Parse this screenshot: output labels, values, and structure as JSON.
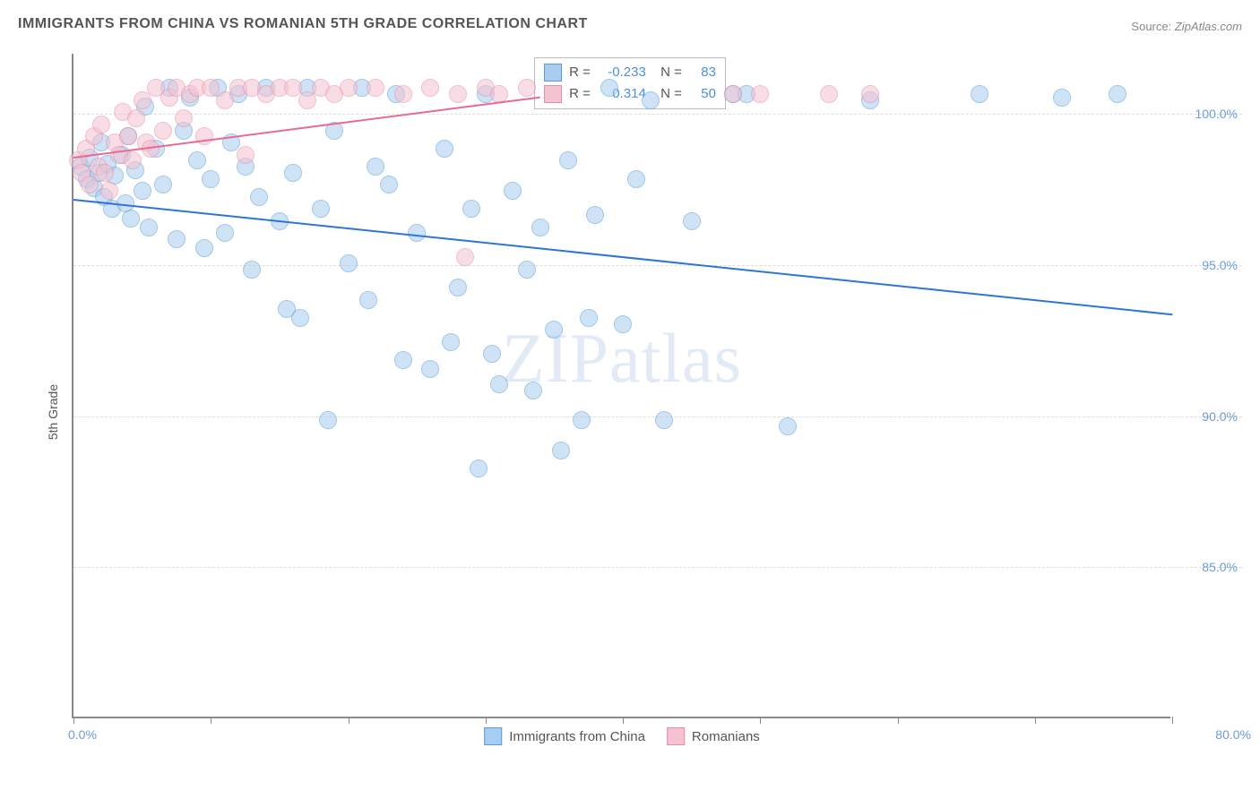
{
  "title": "IMMIGRANTS FROM CHINA VS ROMANIAN 5TH GRADE CORRELATION CHART",
  "source_label": "Source:",
  "source_value": "ZipAtlas.com",
  "watermark_a": "ZIP",
  "watermark_b": "atlas",
  "chart": {
    "type": "scatter",
    "ylabel": "5th Grade",
    "xlim": [
      0,
      80
    ],
    "ylim": [
      80,
      102
    ],
    "y_ticks": [
      85.0,
      90.0,
      95.0,
      100.0
    ],
    "y_tick_labels": [
      "85.0%",
      "90.0%",
      "95.0%",
      "100.0%"
    ],
    "x_ticks": [
      0,
      10,
      20,
      30,
      40,
      50,
      60,
      70,
      80
    ],
    "xlim_labels": {
      "min": "0.0%",
      "max": "80.0%"
    },
    "background_color": "#ffffff",
    "grid_color": "#dddddd",
    "axis_color": "#888888",
    "marker_radius": 10,
    "marker_opacity": 0.55,
    "series": [
      {
        "name": "Immigrants from China",
        "color_fill": "#a9cdf0",
        "color_stroke": "#5b9bd5",
        "trend_color": "#2e75d6",
        "R": "-0.233",
        "N": "83",
        "trend": {
          "x1": 0,
          "y1": 97.2,
          "x2": 80,
          "y2": 93.4
        },
        "points": [
          [
            0.5,
            98.2
          ],
          [
            1.0,
            97.8
          ],
          [
            1.2,
            98.5
          ],
          [
            1.5,
            97.5
          ],
          [
            1.8,
            98.0
          ],
          [
            2.0,
            99.0
          ],
          [
            2.2,
            97.2
          ],
          [
            2.5,
            98.3
          ],
          [
            2.8,
            96.8
          ],
          [
            3.0,
            97.9
          ],
          [
            3.5,
            98.6
          ],
          [
            3.8,
            97.0
          ],
          [
            4.0,
            99.2
          ],
          [
            4.2,
            96.5
          ],
          [
            4.5,
            98.1
          ],
          [
            5.0,
            97.4
          ],
          [
            5.2,
            100.2
          ],
          [
            5.5,
            96.2
          ],
          [
            6.0,
            98.8
          ],
          [
            6.5,
            97.6
          ],
          [
            7.0,
            100.8
          ],
          [
            7.5,
            95.8
          ],
          [
            8.0,
            99.4
          ],
          [
            8.5,
            100.5
          ],
          [
            9.0,
            98.4
          ],
          [
            9.5,
            95.5
          ],
          [
            10.0,
            97.8
          ],
          [
            10.5,
            100.8
          ],
          [
            11.0,
            96.0
          ],
          [
            11.5,
            99.0
          ],
          [
            12.0,
            100.6
          ],
          [
            12.5,
            98.2
          ],
          [
            13.0,
            94.8
          ],
          [
            13.5,
            97.2
          ],
          [
            14.0,
            100.8
          ],
          [
            15.0,
            96.4
          ],
          [
            15.5,
            93.5
          ],
          [
            16.0,
            98.0
          ],
          [
            16.5,
            93.2
          ],
          [
            17.0,
            100.8
          ],
          [
            18.0,
            96.8
          ],
          [
            18.5,
            89.8
          ],
          [
            19.0,
            99.4
          ],
          [
            20.0,
            95.0
          ],
          [
            21.0,
            100.8
          ],
          [
            21.5,
            93.8
          ],
          [
            22.0,
            98.2
          ],
          [
            23.0,
            97.6
          ],
          [
            23.5,
            100.6
          ],
          [
            24.0,
            91.8
          ],
          [
            25.0,
            96.0
          ],
          [
            26.0,
            91.5
          ],
          [
            27.0,
            98.8
          ],
          [
            27.5,
            92.4
          ],
          [
            28.0,
            94.2
          ],
          [
            29.0,
            96.8
          ],
          [
            29.5,
            88.2
          ],
          [
            30.0,
            100.6
          ],
          [
            30.5,
            92.0
          ],
          [
            31.0,
            91.0
          ],
          [
            32.0,
            97.4
          ],
          [
            33.0,
            94.8
          ],
          [
            33.5,
            90.8
          ],
          [
            34.0,
            96.2
          ],
          [
            35.0,
            92.8
          ],
          [
            35.5,
            88.8
          ],
          [
            36.0,
            98.4
          ],
          [
            37.0,
            89.8
          ],
          [
            37.5,
            93.2
          ],
          [
            38.0,
            96.6
          ],
          [
            39.0,
            100.8
          ],
          [
            40.0,
            93.0
          ],
          [
            41.0,
            97.8
          ],
          [
            42.0,
            100.4
          ],
          [
            43.0,
            89.8
          ],
          [
            45.0,
            96.4
          ],
          [
            48.0,
            100.6
          ],
          [
            52.0,
            89.6
          ],
          [
            58.0,
            100.4
          ],
          [
            66.0,
            100.6
          ],
          [
            72.0,
            100.5
          ],
          [
            76.0,
            100.6
          ],
          [
            49.0,
            100.6
          ]
        ]
      },
      {
        "name": "Romanians",
        "color_fill": "#f5c2d1",
        "color_stroke": "#e88ba8",
        "trend_color": "#e86a94",
        "R": "0.314",
        "N": "50",
        "trend": {
          "x1": 0,
          "y1": 98.6,
          "x2": 34,
          "y2": 100.6
        },
        "points": [
          [
            0.3,
            98.4
          ],
          [
            0.6,
            98.0
          ],
          [
            0.9,
            98.8
          ],
          [
            1.2,
            97.6
          ],
          [
            1.5,
            99.2
          ],
          [
            1.8,
            98.2
          ],
          [
            2.0,
            99.6
          ],
          [
            2.3,
            98.0
          ],
          [
            2.6,
            97.4
          ],
          [
            3.0,
            99.0
          ],
          [
            3.3,
            98.6
          ],
          [
            3.6,
            100.0
          ],
          [
            4.0,
            99.2
          ],
          [
            4.3,
            98.4
          ],
          [
            4.6,
            99.8
          ],
          [
            5.0,
            100.4
          ],
          [
            5.3,
            99.0
          ],
          [
            5.6,
            98.8
          ],
          [
            6.0,
            100.8
          ],
          [
            6.5,
            99.4
          ],
          [
            7.0,
            100.5
          ],
          [
            7.5,
            100.8
          ],
          [
            8.0,
            99.8
          ],
          [
            8.5,
            100.6
          ],
          [
            9.0,
            100.8
          ],
          [
            9.5,
            99.2
          ],
          [
            10.0,
            100.8
          ],
          [
            11.0,
            100.4
          ],
          [
            12.0,
            100.8
          ],
          [
            12.5,
            98.6
          ],
          [
            13.0,
            100.8
          ],
          [
            14.0,
            100.6
          ],
          [
            15.0,
            100.8
          ],
          [
            16.0,
            100.8
          ],
          [
            17.0,
            100.4
          ],
          [
            18.0,
            100.8
          ],
          [
            19.0,
            100.6
          ],
          [
            20.0,
            100.8
          ],
          [
            22.0,
            100.8
          ],
          [
            24.0,
            100.6
          ],
          [
            26.0,
            100.8
          ],
          [
            28.0,
            100.6
          ],
          [
            28.5,
            95.2
          ],
          [
            30.0,
            100.8
          ],
          [
            31.0,
            100.6
          ],
          [
            33.0,
            100.8
          ],
          [
            48.0,
            100.6
          ],
          [
            50.0,
            100.6
          ],
          [
            55.0,
            100.6
          ],
          [
            58.0,
            100.6
          ]
        ]
      }
    ],
    "legend": [
      {
        "label": "Immigrants from China",
        "fill": "#a9cdf0",
        "stroke": "#5b9bd5"
      },
      {
        "label": "Romanians",
        "fill": "#f5c2d1",
        "stroke": "#e88ba8"
      }
    ]
  }
}
